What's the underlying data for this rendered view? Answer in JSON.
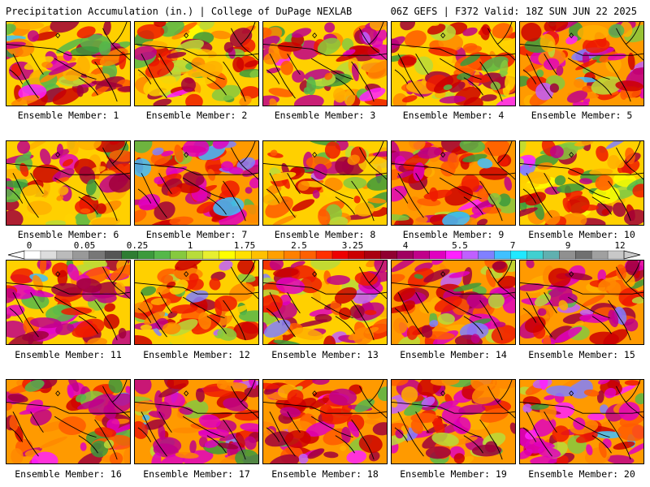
{
  "header": {
    "title_left": "Precipitation Accumulation (in.) | College of DuPage NEXLAB",
    "title_right": "06Z GEFS | F372 Valid: 18Z SUN JUN 22 2025"
  },
  "members": [
    {
      "label": "Ensemble Member: 1",
      "seed": 11,
      "warm": 0.5
    },
    {
      "label": "Ensemble Member: 2",
      "seed": 23,
      "warm": 0.3
    },
    {
      "label": "Ensemble Member: 3",
      "seed": 37,
      "warm": 0.55
    },
    {
      "label": "Ensemble Member: 4",
      "seed": 41,
      "warm": 0.4
    },
    {
      "label": "Ensemble Member: 5",
      "seed": 53,
      "warm": 0.6
    },
    {
      "label": "Ensemble Member: 6",
      "seed": 67,
      "warm": 0.45
    },
    {
      "label": "Ensemble Member: 7",
      "seed": 71,
      "warm": 0.85
    },
    {
      "label": "Ensemble Member: 8",
      "seed": 83,
      "warm": 0.35
    },
    {
      "label": "Ensemble Member: 9",
      "seed": 97,
      "warm": 0.65
    },
    {
      "label": "Ensemble Member: 10",
      "seed": 101,
      "warm": 0.3
    },
    {
      "label": "Ensemble Member: 11",
      "seed": 113,
      "warm": 0.55
    },
    {
      "label": "Ensemble Member: 12",
      "seed": 127,
      "warm": 0.45
    },
    {
      "label": "Ensemble Member: 13",
      "seed": 131,
      "warm": 0.5
    },
    {
      "label": "Ensemble Member: 14",
      "seed": 149,
      "warm": 0.6
    },
    {
      "label": "Ensemble Member: 15",
      "seed": 157,
      "warm": 0.65
    },
    {
      "label": "Ensemble Member: 16",
      "seed": 163,
      "warm": 0.7
    },
    {
      "label": "Ensemble Member: 17",
      "seed": 173,
      "warm": 0.75
    },
    {
      "label": "Ensemble Member: 18",
      "seed": 181,
      "warm": 0.65
    },
    {
      "label": "Ensemble Member: 19",
      "seed": 191,
      "warm": 0.6
    },
    {
      "label": "Ensemble Member: 20",
      "seed": 199,
      "warm": 0.7
    }
  ],
  "colorbar": {
    "labels": [
      "0",
      "0.05",
      "0.25",
      "1",
      "1.75",
      "2.5",
      "3.25",
      "4",
      "5.5",
      "7",
      "9",
      "12"
    ],
    "colors": [
      "#ffffff",
      "#dddddd",
      "#bbbbbb",
      "#999999",
      "#777777",
      "#555555",
      "#2e7d32",
      "#3c9a3c",
      "#55b84a",
      "#86c93e",
      "#b8dc3a",
      "#e8ef30",
      "#ffff00",
      "#ffe000",
      "#ffc000",
      "#ffa000",
      "#ff8000",
      "#ff6000",
      "#ff3000",
      "#ee0000",
      "#cc0000",
      "#aa0010",
      "#900030",
      "#a00060",
      "#c0008a",
      "#e000c0",
      "#ff20ff",
      "#c060ff",
      "#8080ff",
      "#40c0ff",
      "#20e8ff",
      "#40d0d0",
      "#60b0b0",
      "#909090",
      "#707070",
      "#a0a0a0",
      "#c8c8c8"
    ]
  }
}
